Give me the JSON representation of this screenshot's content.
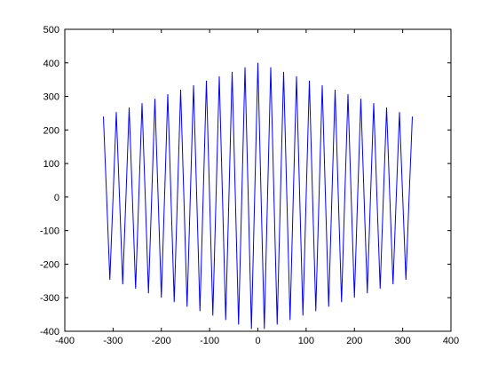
{
  "chart_data": {
    "type": "line",
    "x": [
      -320,
      -313.33,
      -306.67,
      -300,
      -293.33,
      -286.67,
      -280,
      -273.33,
      -266.67,
      -260,
      -253.33,
      -246.67,
      -240,
      -233.33,
      -226.67,
      -220,
      -213.33,
      -206.67,
      -200,
      -193.33,
      -186.67,
      -180,
      -173.33,
      -166.67,
      -160,
      -153.33,
      -146.67,
      -140,
      -133.33,
      -126.67,
      -120,
      -113.33,
      -106.67,
      -100,
      -93.33,
      -86.67,
      -80,
      -73.33,
      -66.67,
      -60,
      -53.33,
      -46.67,
      -40,
      -33.33,
      -26.67,
      -20,
      -13.33,
      -6.67,
      0,
      6.67,
      13.33,
      20,
      26.67,
      33.33,
      40,
      46.67,
      53.33,
      60,
      66.67,
      73.33,
      80,
      86.67,
      93.33,
      100,
      106.67,
      113.33,
      120,
      126.67,
      133.33,
      140,
      146.67,
      153.33,
      160,
      166.67,
      173.33,
      180,
      186.67,
      193.33,
      200,
      206.67,
      213.33,
      220,
      226.67,
      233.33,
      240,
      246.67,
      253.33,
      260,
      266.67,
      273.33,
      280,
      286.67,
      293.33,
      300,
      306.67,
      313.33,
      320
    ],
    "series": [
      {
        "color": "#0000ff",
        "values": [
          240,
          0,
          -246.67,
          0,
          253.33,
          0,
          -260,
          0,
          266.67,
          0,
          -273.33,
          0,
          280,
          0,
          -286.67,
          0,
          293.33,
          0,
          -300,
          0,
          306.67,
          0,
          -313.33,
          0,
          320,
          0,
          -326.67,
          0,
          333.33,
          0,
          -340,
          0,
          346.67,
          0,
          -353.33,
          0,
          360,
          0,
          -366.67,
          0,
          373.33,
          0,
          -380,
          0,
          386.67,
          0,
          -393.33,
          0,
          400,
          0,
          -393.33,
          0,
          386.67,
          0,
          -380,
          0,
          373.33,
          0,
          -366.67,
          0,
          360,
          0,
          -353.33,
          0,
          346.67,
          0,
          -340,
          0,
          333.33,
          0,
          -326.67,
          0,
          320,
          0,
          -313.33,
          0,
          306.67,
          0,
          -300,
          0,
          293.33,
          0,
          -286.67,
          0,
          280,
          0,
          -273.33,
          0,
          266.67,
          0,
          -260,
          0,
          253.33,
          0,
          -246.67,
          0,
          240
        ]
      }
    ],
    "xlim": [
      -400,
      400
    ],
    "xticks": [
      -400,
      -300,
      -200,
      -100,
      0,
      100,
      200,
      300,
      400
    ],
    "ylim": [
      -400,
      500
    ],
    "yticks": [
      -400,
      -300,
      -200,
      -100,
      0,
      100,
      200,
      300,
      400,
      500
    ]
  }
}
